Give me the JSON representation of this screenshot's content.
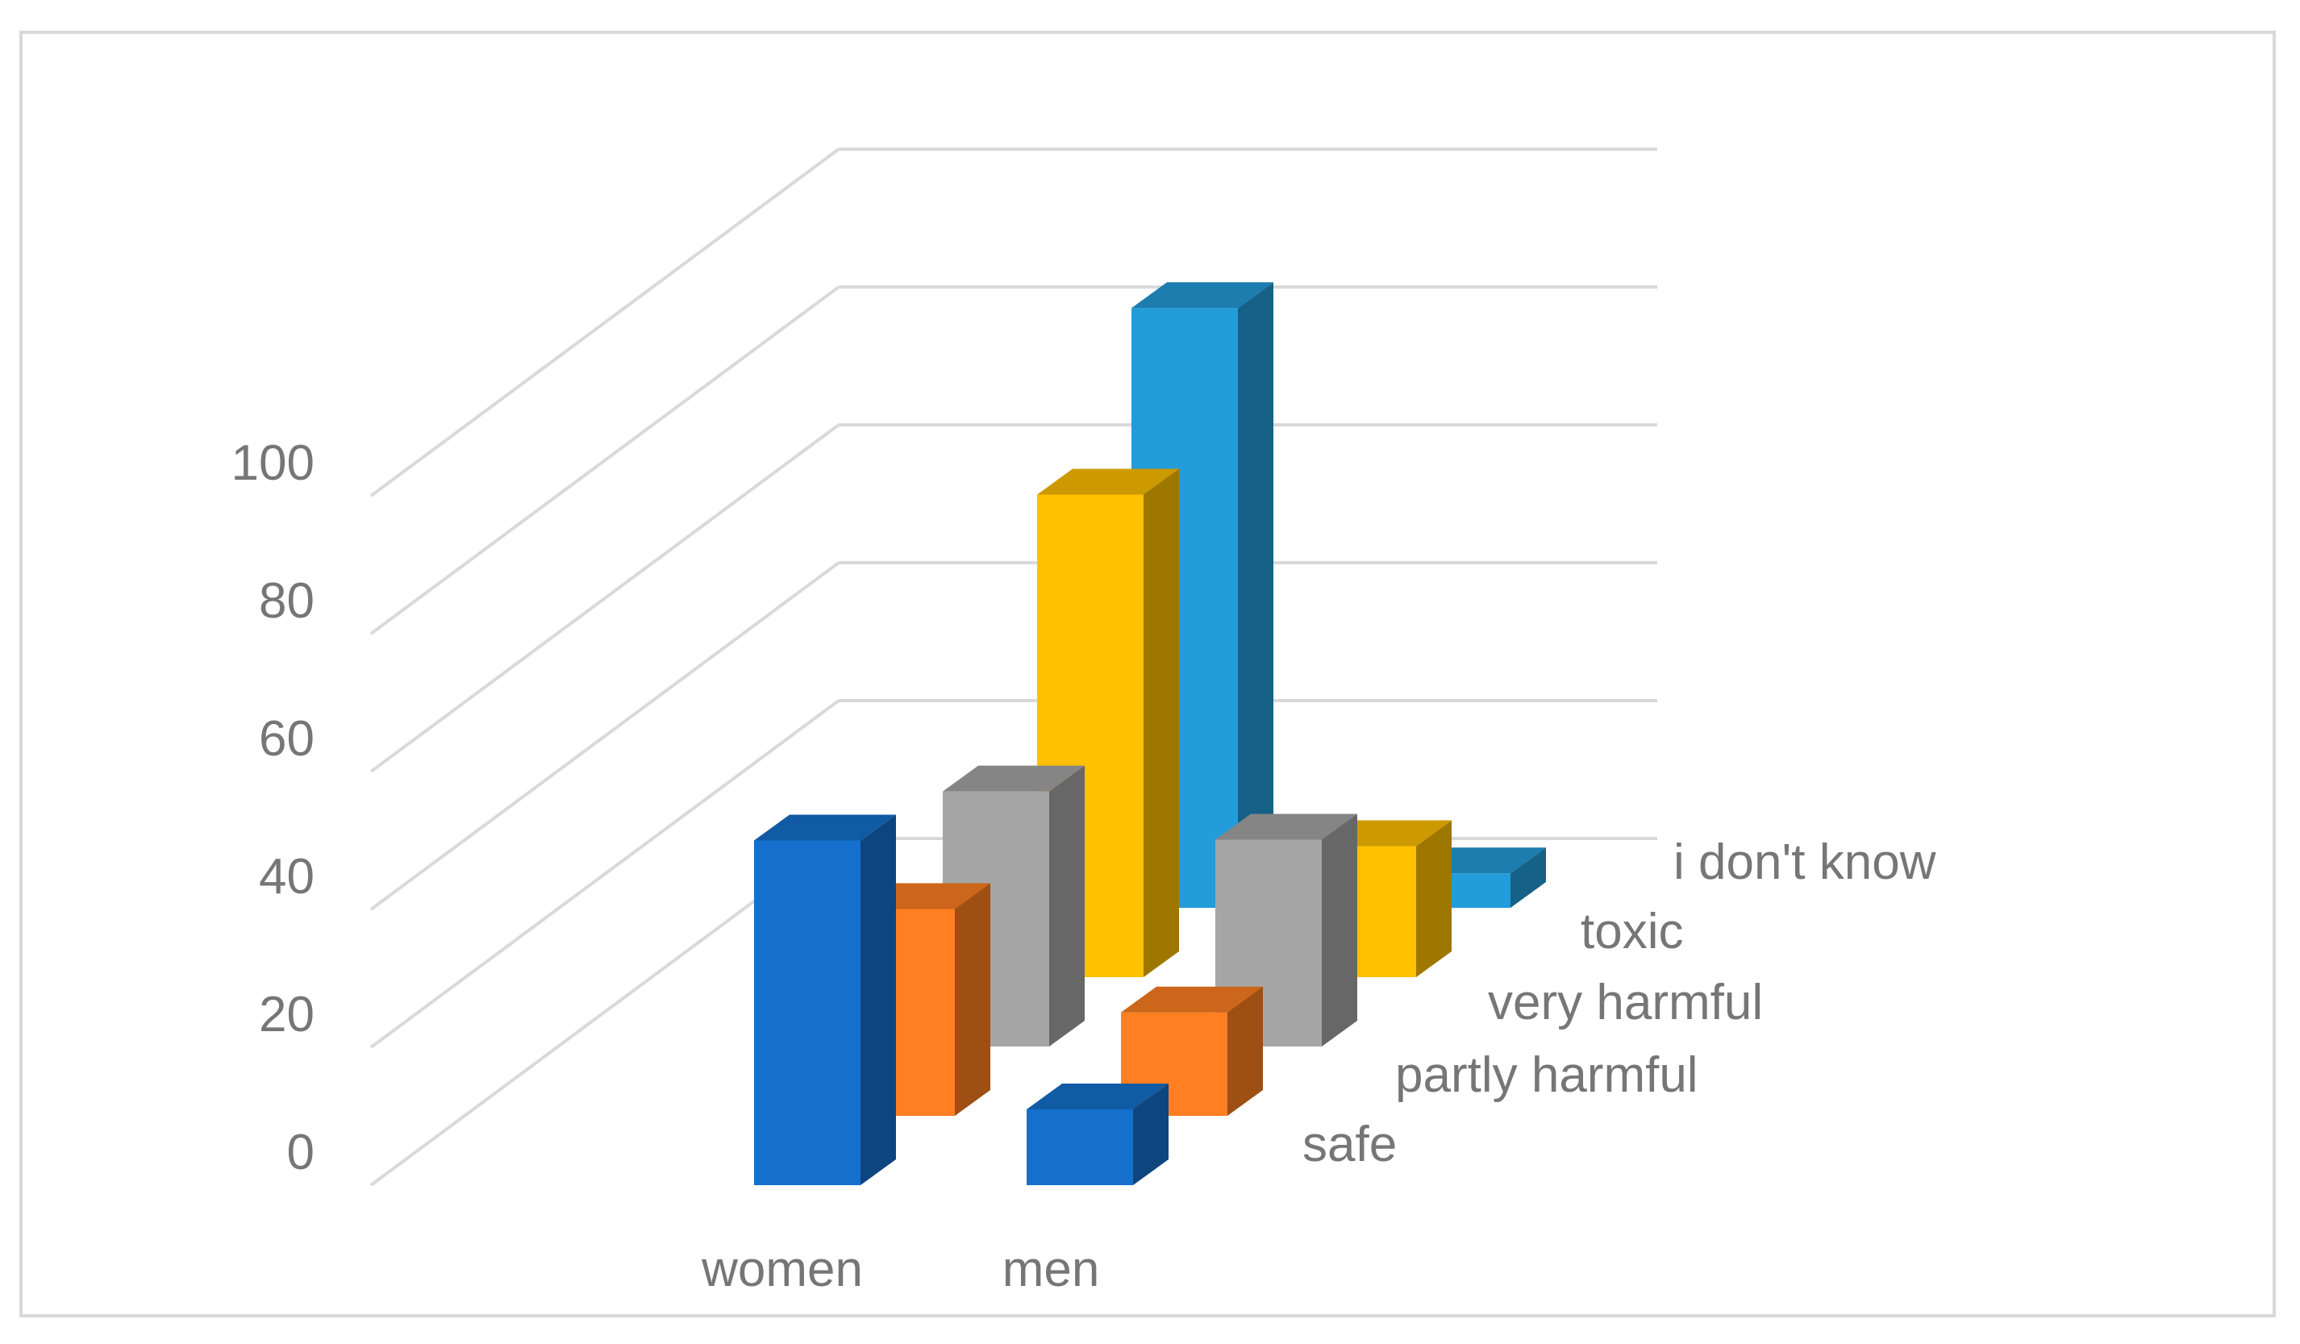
{
  "chart_data": {
    "type": "bar",
    "subtype": "3d-column",
    "title": "",
    "xlabel": "",
    "ylabel": "",
    "ylim": [
      0,
      100
    ],
    "yticks": [
      0,
      20,
      40,
      60,
      80,
      100
    ],
    "grid": true,
    "categories": [
      "women",
      "men"
    ],
    "series": [
      {
        "name": "safe",
        "color": "#1570cd",
        "values": [
          50,
          11
        ]
      },
      {
        "name": "partly harmful",
        "color": "#ff7f21",
        "values": [
          30,
          15
        ]
      },
      {
        "name": "very harmful",
        "color": "#a6a6a6",
        "values": [
          37,
          30
        ]
      },
      {
        "name": "toxic",
        "color": "#ffc000",
        "values": [
          70,
          19
        ]
      },
      {
        "name": "i don't know",
        "color": "#239cda",
        "values": [
          87,
          5
        ]
      }
    ]
  }
}
